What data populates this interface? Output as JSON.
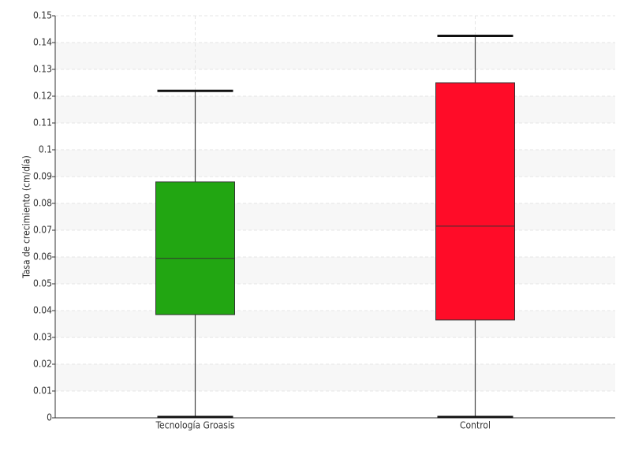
{
  "chart_data": {
    "type": "box",
    "y_label": "Tasa de crecimiento (cm/día)",
    "categories": [
      "Tecnología Groasis",
      "Control"
    ],
    "boxes": [
      {
        "min": 0,
        "q1": 0.0385,
        "median": 0.0595,
        "q3": 0.088,
        "max": 0.122,
        "color": "#22a612"
      },
      {
        "min": 0,
        "q1": 0.0365,
        "median": 0.0715,
        "q3": 0.125,
        "max": 0.1425,
        "color": "#ff0c28"
      }
    ],
    "ylim": [
      0,
      0.15
    ],
    "yticks": [
      0,
      0.01,
      0.02,
      0.03,
      0.04,
      0.05,
      0.06,
      0.07,
      0.08,
      0.09,
      0.1,
      0.11,
      0.12,
      0.13,
      0.14,
      0.15
    ],
    "grid": true
  }
}
